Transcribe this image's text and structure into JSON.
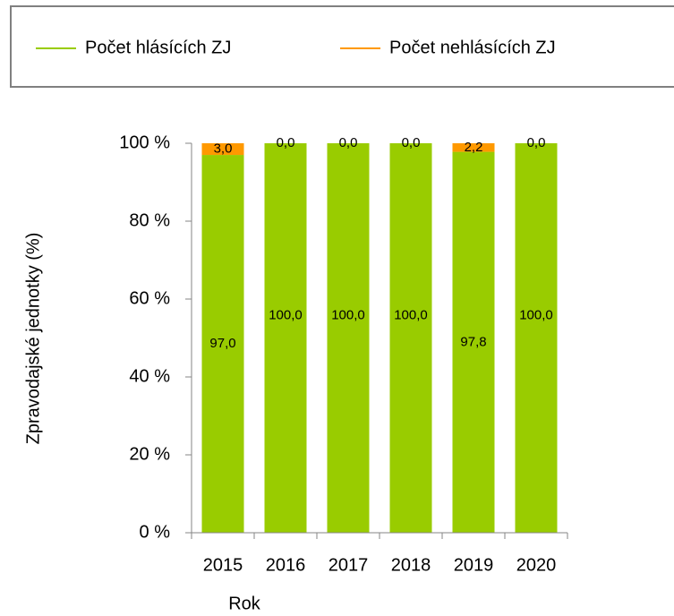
{
  "chart_data": {
    "type": "stacked_bar",
    "xlabel": "Rok",
    "ylabel": "Zpravodajské jednotky (%)",
    "categories": [
      "2015",
      "2016",
      "2017",
      "2018",
      "2019",
      "2020"
    ],
    "series": [
      {
        "name": "Počet hlásících ZJ",
        "color": "#99cc00",
        "values": [
          97.0,
          100.0,
          100.0,
          100.0,
          97.8,
          100.0
        ],
        "value_labels": [
          "97,0",
          "100,0",
          "100,0",
          "100,0",
          "97,8",
          "100,0"
        ]
      },
      {
        "name": "Počet nehlásících ZJ",
        "color": "#ff9900",
        "values": [
          3.0,
          0.0,
          0.0,
          0.0,
          2.2,
          0.0
        ],
        "value_labels": [
          "3,0",
          "0,0",
          "0,0",
          "0,0",
          "2,2",
          "0,0"
        ]
      }
    ],
    "ylim": [
      0,
      100
    ],
    "yticks": [
      {
        "value": 0,
        "label": "0 %"
      },
      {
        "value": 20,
        "label": "20 %"
      },
      {
        "value": 40,
        "label": "40 %"
      },
      {
        "value": 60,
        "label": "60 %"
      },
      {
        "value": 80,
        "label": "80 %"
      },
      {
        "value": 100,
        "label": "100 %"
      }
    ],
    "legend": "top"
  }
}
